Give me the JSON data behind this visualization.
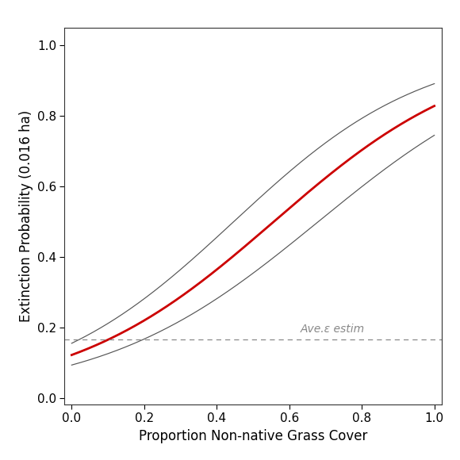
{
  "title": "",
  "xlabel": "Proportion Non-native Grass Cover",
  "ylabel": "Extinction Probability (0.016 ha)",
  "xlim": [
    -0.02,
    1.02
  ],
  "ylim": [
    -0.02,
    1.05
  ],
  "x_ticks": [
    0.0,
    0.2,
    0.4,
    0.6,
    0.8,
    1.0
  ],
  "y_ticks": [
    0.0,
    0.2,
    0.4,
    0.6,
    0.8,
    1.0
  ],
  "hline_y": 0.165,
  "hline_label": "Ave.ε estim",
  "hline_color": "#888888",
  "curve_color": "#cc0000",
  "ci_color": "#555555",
  "curve_lw": 2.0,
  "ci_lw": 0.85,
  "background_color": "#ffffff",
  "main_intercept": -1.98,
  "main_slope": 3.55,
  "lo_intercept": -2.28,
  "lo_slope": 3.35,
  "hi_intercept": -1.7,
  "hi_slope": 3.8,
  "figsize": [
    5.8,
    5.8
  ],
  "dpi": 100
}
